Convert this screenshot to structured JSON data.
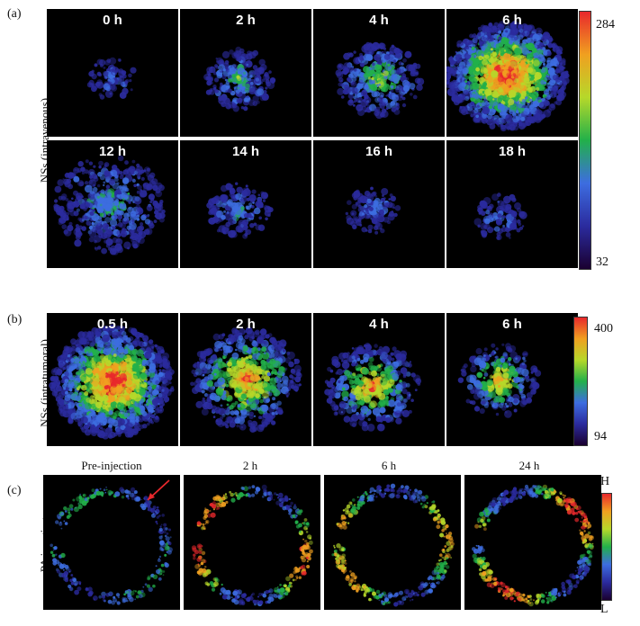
{
  "panels": {
    "a": {
      "letter": "(a)",
      "ylabel": "NSs (intravenous)",
      "times": [
        "0 h",
        "2 h",
        "4 h",
        "6 h",
        "12 h",
        "14 h",
        "16 h",
        "18 h"
      ],
      "colorbar": {
        "max": "284",
        "min": "32"
      }
    },
    "b": {
      "letter": "(b)",
      "ylabel": "NSs (intratumoral)",
      "times": [
        "0.5 h",
        "2 h",
        "4 h",
        "6 h"
      ],
      "colorbar": {
        "max": "400",
        "min": "94"
      }
    },
    "c": {
      "letter": "(c)",
      "ylabel": "PA imaging",
      "times": [
        "Pre-injection",
        "2 h",
        "6 h",
        "24 h"
      ],
      "colorbar": {
        "max": "H",
        "min": "L"
      }
    }
  },
  "colors": {
    "scale": [
      "#1a0030",
      "#2b2b9e",
      "#3d6de0",
      "#22b04a",
      "#b6d82a",
      "#f0a020",
      "#e8282c"
    ],
    "arrow": "#e8282c"
  }
}
